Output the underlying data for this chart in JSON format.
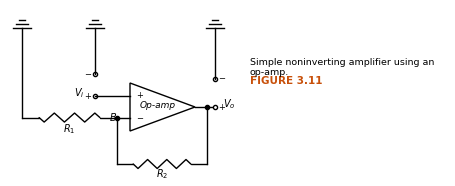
{
  "background_color": "#ffffff",
  "figure_caption": "FIGURE 3.11",
  "figure_caption_color": "#c8500a",
  "figure_caption_fontsize": 7.5,
  "figure_description": "Simple noninverting amplifier using an op-amp.",
  "figure_description_color": "#000000",
  "figure_description_fontsize": 6.8,
  "circuit_color": "#000000",
  "line_width": 1.0,
  "opamp_label": "Op-amp",
  "opamp_label_fontsize": 6.5,
  "R1_label": "$R_1$",
  "R2_label": "$R_2$",
  "B_label": "B",
  "Vi_label": "$V_i$",
  "Vo_label": "$V_o$",
  "plus_label": "+",
  "minus_label": "−",
  "label_fontsize": 7,
  "small_label_fontsize": 6
}
